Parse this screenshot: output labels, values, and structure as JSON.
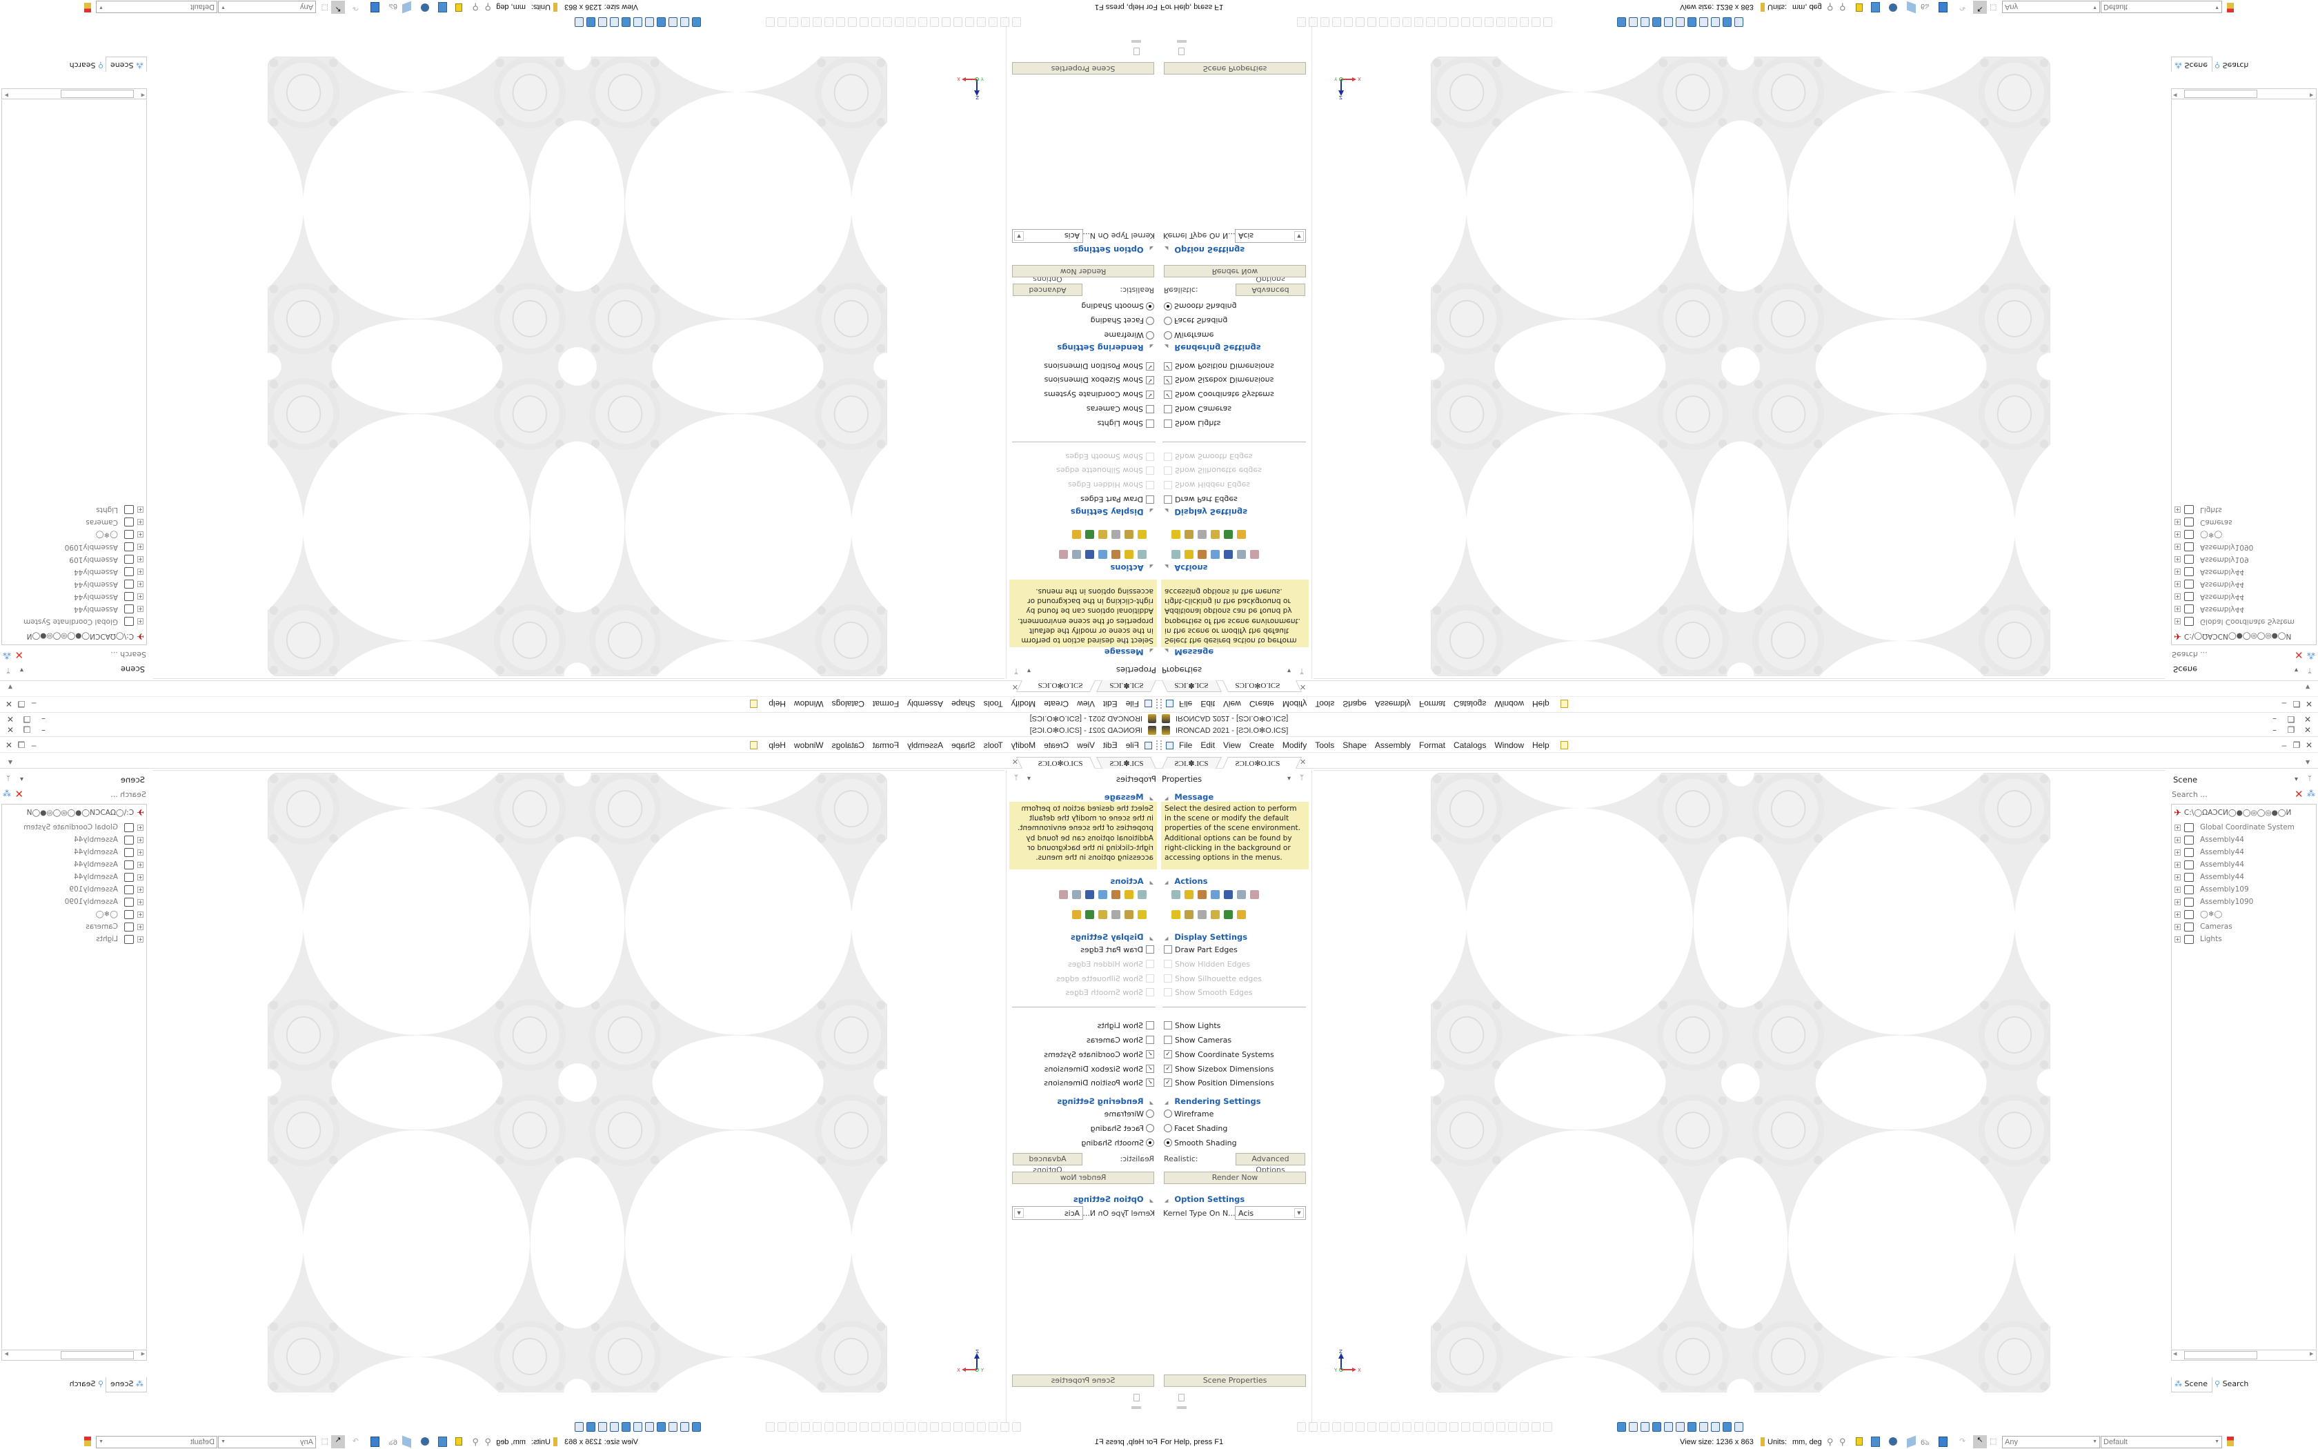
{
  "window": {
    "title": "IRONCAD 2021 - [ƧƆI.O✻O.ICS]",
    "controls": [
      "–",
      "❐",
      "✕"
    ]
  },
  "menu": [
    "File",
    "Edit",
    "View",
    "Create",
    "Modify",
    "Tools",
    "Shape",
    "Assembly",
    "Format",
    "Catalogs",
    "Window",
    "Help"
  ],
  "tabs": [
    {
      "label": "ƧƆI.✽.ICS",
      "active": false
    },
    {
      "label": "ƧƆI.O✻O.ICS",
      "active": true
    }
  ],
  "tab_close": "✕",
  "properties": {
    "title": "Properties",
    "message_heading": "Message",
    "message": "Select the desired action to perform in the scene or modify the default properties of the scene environment. Additional options can be found by right-clicking in the background or accessing options in the menus.",
    "actions_heading": "Actions",
    "action_icons": [
      "list-icon",
      "extrude-icon",
      "revolve-icon",
      "sweep-icon",
      "shell-icon",
      "sketch-edit-icon",
      "chart-icon",
      "box-view-icon",
      "gear-icon",
      "calendar-icon",
      "assembly-icon",
      "axis-triad-icon",
      "blocks-icon"
    ],
    "display_heading": "Display Settings",
    "edges": [
      {
        "label": "Draw Part Edges",
        "checked": false,
        "enabled": true
      },
      {
        "label": "Show Hidden Edges",
        "checked": false,
        "enabled": false
      },
      {
        "label": "Show Silhouette edges",
        "checked": false,
        "enabled": false
      },
      {
        "label": "Show Smooth Edges",
        "checked": false,
        "enabled": false
      }
    ],
    "shows": [
      {
        "label": "Show Lights",
        "checked": false
      },
      {
        "label": "Show Cameras",
        "checked": false
      },
      {
        "label": "Show Coordinate Systems",
        "checked": true
      },
      {
        "label": "Show Sizebox Dimensions",
        "checked": true
      },
      {
        "label": "Show Position Dimensions",
        "checked": true
      }
    ],
    "rendering_heading": "Rendering Settings",
    "render_modes": [
      {
        "label": "Wireframe",
        "selected": false
      },
      {
        "label": "Facet Shading",
        "selected": false
      },
      {
        "label": "Smooth Shading",
        "selected": true
      }
    ],
    "realistic_label": "Realistic:",
    "advanced_options": "Advanced Options",
    "render_now": "Render Now",
    "option_heading": "Option Settings",
    "kernel_label": "Kernel Type On N...",
    "kernel_value": "Acis",
    "scene_properties": "Scene Properties"
  },
  "scene": {
    "title": "Scene",
    "search_placeholder": "Search ...",
    "root": "C:\\◯ΩΑϽCИ◯●◯◎◯◎●◯И",
    "items": [
      {
        "label": "Global Coordinate System",
        "icon": "coordinate-system-icon"
      },
      {
        "label": "Assembly44",
        "icon": "assembly-icon"
      },
      {
        "label": "Assembly44",
        "icon": "assembly-icon"
      },
      {
        "label": "Assembly44",
        "icon": "assembly-icon"
      },
      {
        "label": "Assembly44",
        "icon": "assembly-icon"
      },
      {
        "label": "Assembly109",
        "icon": "assembly-icon"
      },
      {
        "label": "Assembly1090",
        "icon": "assembly-icon"
      },
      {
        "label": "◯❄◯",
        "icon": "part-icon"
      },
      {
        "label": "Cameras",
        "icon": "camera-icon"
      },
      {
        "label": "Lights",
        "icon": "light-icon"
      }
    ],
    "tab_scene": "Scene",
    "tab_search": "Search"
  },
  "viewport": {
    "axis_z": "Z",
    "axis_x": "X",
    "axis_y": "Y"
  },
  "status": {
    "help": "For Help, press F1",
    "view_size": "View size: 1236 x  863",
    "units_label": "Units:",
    "units_value": "mm, deg",
    "filter": "Any",
    "style": "Default"
  },
  "colors": {
    "accent": "#1f5fae",
    "message_bg": "#f6f0b8",
    "button_bg": "#ece9d8",
    "model": "#ececec"
  }
}
